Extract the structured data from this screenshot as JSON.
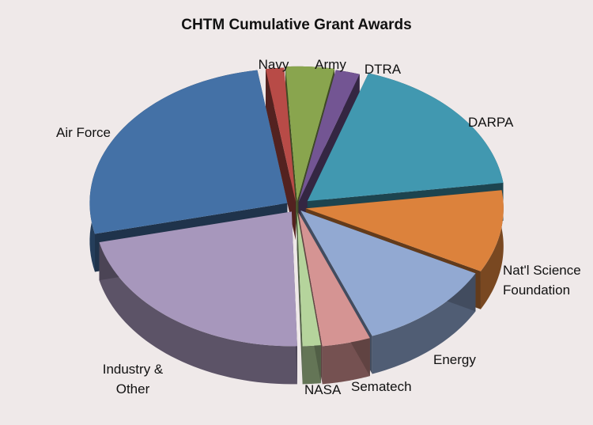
{
  "chart_data": {
    "type": "pie",
    "title": "CHTM Cumulative Grant Awards",
    "style": "3d-exploded",
    "slices": [
      {
        "label": "DARPA",
        "value": 18.0,
        "color": "#4198b0"
      },
      {
        "label": "Nat'l Science Foundation",
        "value": 10.0,
        "color": "#dc823c"
      },
      {
        "label": "Energy",
        "value": 11.5,
        "color": "#92a9d2"
      },
      {
        "label": "Sematech",
        "value": 4.0,
        "color": "#d59493"
      },
      {
        "label": "NASA",
        "value": 1.5,
        "color": "#b5d49c"
      },
      {
        "label": "Industry & Other",
        "value": 22.0,
        "color": "#a797bc"
      },
      {
        "label": "Air Force",
        "value": 26.5,
        "color": "#4471a6"
      },
      {
        "label": "Navy",
        "value": 1.5,
        "color": "#b84b47"
      },
      {
        "label": "Army",
        "value": 4.0,
        "color": "#89a54e"
      },
      {
        "label": "DTRA",
        "value": 2.0,
        "color": "#735593"
      }
    ]
  }
}
